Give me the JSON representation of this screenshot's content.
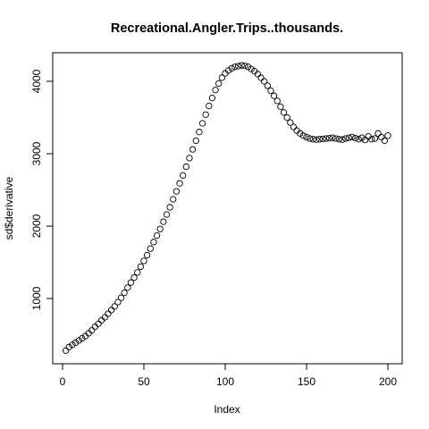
{
  "chart_data": {
    "type": "scatter",
    "title": "Recreational.Angler.Trips..thousands.",
    "xlabel": "Index",
    "ylabel": "sd$derivative",
    "xlim": [
      0,
      200
    ],
    "ylim": [
      200,
      4300
    ],
    "x_ticks": [
      "0",
      "50",
      "100",
      "150",
      "200"
    ],
    "y_ticks": [
      "1000",
      "2000",
      "3000",
      "4000"
    ],
    "marker": "open-circle",
    "marker_color": "#000000",
    "grid": false,
    "legend": "none",
    "series": [
      {
        "x": [
          2,
          4,
          6,
          8,
          10,
          12,
          14,
          16,
          18,
          20,
          22,
          24,
          26,
          28,
          30,
          32,
          34,
          36,
          38,
          40,
          42,
          44,
          46,
          48,
          50,
          52,
          54,
          56,
          58,
          60,
          62,
          64,
          66,
          68,
          70,
          72,
          74,
          76,
          78,
          80,
          82,
          84,
          86,
          88,
          90,
          92,
          94,
          96,
          98,
          100,
          102,
          104,
          106,
          108,
          110,
          112,
          114,
          116,
          118,
          120,
          122,
          124,
          126,
          128,
          130,
          132,
          134,
          136,
          138,
          140,
          142,
          144,
          146,
          148,
          150,
          152,
          154,
          156,
          158,
          160,
          162,
          164,
          166,
          168,
          170,
          172,
          174,
          176,
          178,
          180,
          182,
          184,
          186,
          188,
          190,
          192,
          194,
          196,
          198,
          200
        ],
        "y": [
          280,
          330,
          360,
          390,
          420,
          450,
          480,
          520,
          560,
          610,
          650,
          700,
          740,
          790,
          840,
          890,
          950,
          1010,
          1080,
          1150,
          1220,
          1290,
          1360,
          1440,
          1520,
          1600,
          1690,
          1780,
          1870,
          1960,
          2060,
          2160,
          2260,
          2370,
          2480,
          2590,
          2700,
          2820,
          2940,
          3060,
          3180,
          3300,
          3420,
          3540,
          3660,
          3770,
          3880,
          3970,
          4050,
          4110,
          4150,
          4180,
          4200,
          4210,
          4220,
          4215,
          4200,
          4170,
          4140,
          4100,
          4050,
          4000,
          3940,
          3870,
          3800,
          3730,
          3650,
          3570,
          3500,
          3430,
          3370,
          3320,
          3280,
          3250,
          3230,
          3210,
          3200,
          3195,
          3200,
          3205,
          3210,
          3215,
          3220,
          3210,
          3200,
          3195,
          3210,
          3220,
          3230,
          3215,
          3200,
          3220,
          3190,
          3240,
          3200,
          3210,
          3280,
          3230,
          3180,
          3250
        ]
      }
    ]
  }
}
